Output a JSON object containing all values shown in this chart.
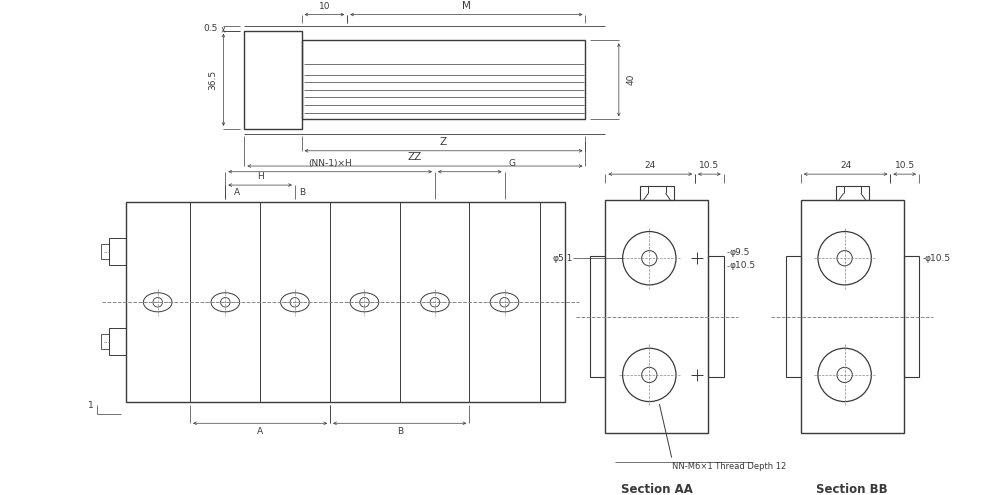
{
  "bg_color": "#ffffff",
  "lc": "#3a3a3a",
  "dc": "#3a3a3a",
  "fs": 6.5,
  "fl": 7.5,
  "fsec": 8.5,
  "annotations": {
    "dim_05": "0.5",
    "dim_10": "10",
    "dim_M": "M",
    "dim_365": "36.5",
    "dim_40": "40",
    "dim_Z": "Z",
    "dim_ZZ": "ZZ",
    "dim_NN1H": "(NN-1)×H",
    "dim_H": "H",
    "dim_G": "G",
    "dim_A": "A",
    "dim_B": "B",
    "dim_1": "1",
    "dim_24": "24",
    "dim_105": "10.5",
    "dim_51": "φ5.1",
    "dim_95": "φ9.5",
    "dim_105c": "φ10.5",
    "note": "NN-M6×1 Thread Depth 12",
    "section_aa": "Section AA",
    "section_bb": "Section BB"
  }
}
